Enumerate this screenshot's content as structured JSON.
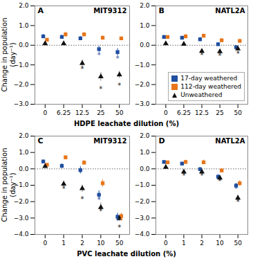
{
  "chart_data": [
    {
      "type": "scatter",
      "title": "MIT9312",
      "annotations": [
        "A"
      ],
      "xlabel": "HDPE leachate dilution (%)",
      "ylabel": "Change in population\n(day⁻¹)",
      "categories": [
        "0",
        "6.25",
        "12.5",
        "25",
        "50"
      ],
      "ylim": [
        -3.0,
        2.0
      ],
      "yticks": [
        -3,
        -2,
        -1,
        0,
        1,
        2
      ],
      "hline": 0,
      "star_text": "*",
      "series": [
        {
          "name": "17-day weathered",
          "color": "#1f4e9f",
          "marker": "square",
          "values": [
            0.45,
            0.42,
            0.35,
            -0.2,
            -0.35
          ],
          "errors": [
            0.1,
            0.1,
            0.1,
            0.15,
            0.18
          ],
          "stars": [
            null,
            null,
            null,
            -0.5,
            -0.68
          ]
        },
        {
          "name": "112-day weathered",
          "color": "#e8751a",
          "marker": "square",
          "values": [
            0.28,
            0.55,
            0.55,
            0.38,
            0.35
          ],
          "errors": [
            0.06,
            0.12,
            0.1,
            0.1,
            0.06
          ],
          "stars": [
            null,
            null,
            null,
            null,
            null
          ]
        },
        {
          "name": "Unweathered",
          "color": "#111111",
          "marker": "triangle",
          "values": [
            0.08,
            0.08,
            -0.92,
            -1.6,
            -1.5
          ],
          "errors": [
            0.06,
            0.06,
            0.18,
            0.22,
            0.18
          ],
          "stars": [
            null,
            null,
            -1.22,
            -2.25,
            -2.05
          ]
        }
      ]
    },
    {
      "type": "scatter",
      "title": "NATL2A",
      "annotations": [
        "B"
      ],
      "legend": "lower right",
      "categories": [
        "0",
        "6.25",
        "12.5",
        "25",
        "50"
      ],
      "ylim": [
        -3.0,
        2.0
      ],
      "yticks": [
        -3,
        -2,
        -1,
        0,
        1,
        2
      ],
      "hline": 0,
      "star_text": "*",
      "series": [
        {
          "name": "17-day weathered",
          "color": "#1f4e9f",
          "marker": "square",
          "values": [
            0.42,
            0.38,
            0.3,
            0.05,
            -0.1
          ],
          "errors": [
            0.08,
            0.08,
            0.1,
            0.08,
            0.08
          ],
          "stars": [
            null,
            null,
            null,
            null,
            null
          ]
        },
        {
          "name": "112-day weathered",
          "color": "#e8751a",
          "marker": "square",
          "values": [
            0.42,
            0.45,
            0.48,
            0.25,
            0.22
          ],
          "errors": [
            0.06,
            0.1,
            0.1,
            0.08,
            0.06
          ],
          "stars": [
            null,
            null,
            null,
            null,
            null
          ]
        },
        {
          "name": "Unweathered",
          "color": "#111111",
          "marker": "triangle",
          "values": [
            0.08,
            0.06,
            -0.3,
            -0.32,
            -0.18
          ],
          "errors": [
            0.05,
            0.05,
            0.1,
            0.1,
            0.08
          ],
          "stars": [
            null,
            null,
            -0.52,
            -0.55,
            -0.45
          ]
        }
      ]
    },
    {
      "type": "scatter",
      "title": "MIT9312",
      "annotations": [
        "C"
      ],
      "xlabel": "PVC leachate dilution (%)",
      "ylabel": "Change in population\n(day⁻¹)",
      "categories": [
        "0",
        "1",
        "2",
        "10",
        "50"
      ],
      "ylim": [
        -4.0,
        2.0
      ],
      "yticks": [
        -4,
        -3,
        -2,
        -1,
        0,
        1,
        2
      ],
      "hline": 0,
      "star_text": "*",
      "series": [
        {
          "name": "17-day weathered",
          "color": "#1f4e9f",
          "marker": "square",
          "values": [
            0.45,
            0.18,
            -0.08,
            -1.58,
            -2.92
          ],
          "errors": [
            0.1,
            0.14,
            0.22,
            0.25,
            0.22
          ],
          "stars": [
            null,
            null,
            null,
            -1.88,
            -3.18
          ]
        },
        {
          "name": "112-day weathered",
          "color": "#e8751a",
          "marker": "square",
          "values": [
            0.25,
            0.7,
            0.38,
            -0.88,
            -2.88
          ],
          "errors": [
            0.07,
            0.12,
            0.14,
            0.22,
            0.18
          ],
          "stars": [
            null,
            null,
            null,
            null,
            -3.18
          ]
        },
        {
          "name": "Unweathered",
          "color": "#111111",
          "marker": "triangle",
          "values": [
            0.15,
            -0.92,
            -1.2,
            -2.35,
            -3.02
          ],
          "errors": [
            0.07,
            0.18,
            0.22,
            0.28,
            0.18
          ],
          "stars": [
            null,
            -1.22,
            -1.85,
            -2.58,
            -3.6
          ]
        }
      ]
    },
    {
      "type": "scatter",
      "title": "NATL2A",
      "annotations": [
        "D"
      ],
      "categories": [
        "0",
        "1",
        "2",
        "10",
        "50"
      ],
      "ylim": [
        -4.0,
        2.0
      ],
      "yticks": [
        -4,
        -3,
        -2,
        -1,
        0,
        1,
        2
      ],
      "hline": 0,
      "star_text": "*",
      "series": [
        {
          "name": "17-day weathered",
          "color": "#1f4e9f",
          "marker": "square",
          "values": [
            0.42,
            0.32,
            -0.02,
            -0.48,
            -1.02
          ],
          "errors": [
            0.08,
            0.1,
            0.1,
            0.14,
            0.14
          ],
          "stars": [
            null,
            null,
            null,
            null,
            -1.22
          ]
        },
        {
          "name": "112-day weathered",
          "color": "#e8751a",
          "marker": "square",
          "values": [
            0.4,
            0.42,
            0.4,
            -0.1,
            -0.88
          ],
          "errors": [
            0.06,
            0.12,
            0.14,
            0.12,
            0.16
          ],
          "stars": [
            null,
            null,
            null,
            null,
            null
          ]
        },
        {
          "name": "Unweathered",
          "color": "#111111",
          "marker": "triangle",
          "values": [
            0.1,
            -0.18,
            -0.18,
            -0.55,
            -1.78
          ],
          "errors": [
            0.05,
            0.1,
            0.1,
            0.14,
            0.18
          ],
          "stars": [
            null,
            -0.42,
            -0.42,
            -0.78,
            -2.02
          ]
        }
      ]
    }
  ]
}
